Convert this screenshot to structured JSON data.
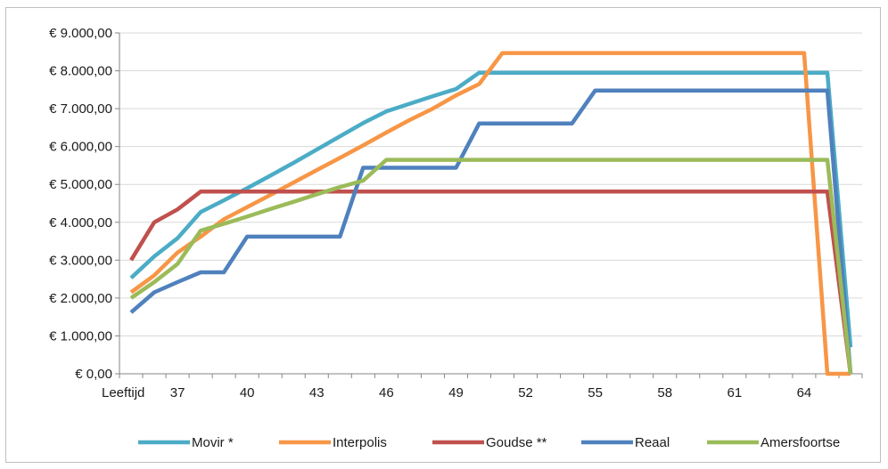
{
  "chart_data": {
    "type": "line",
    "title": "",
    "xlabel": "",
    "ylabel": "",
    "grid": true,
    "legend": "bottom",
    "x": [
      35,
      36,
      37,
      38,
      39,
      40,
      41,
      42,
      43,
      44,
      45,
      46,
      47,
      48,
      49,
      50,
      51,
      52,
      53,
      54,
      55,
      56,
      57,
      58,
      59,
      60,
      61,
      62,
      63,
      64,
      65,
      66
    ],
    "x_tick_labels": [
      "Leeftijd",
      "37",
      "40",
      "43",
      "46",
      "49",
      "52",
      "55",
      "58",
      "61",
      "64"
    ],
    "y_tick_labels": [
      "€ 0,00",
      "€ 1.000,00",
      "€ 2.000,00",
      "€ 3.000,00",
      "€ 4.000,00",
      "€ 5.000,00",
      "€ 6.000,00",
      "€ 7.000,00",
      "€ 8.000,00",
      "€ 9.000,00"
    ],
    "ylim": [
      0,
      9000
    ],
    "series": [
      {
        "name": "Movir *",
        "color": "#4bacc6",
        "values": [
          2530,
          3100,
          3580,
          4270,
          4580,
          4900,
          5230,
          5570,
          5920,
          6270,
          6620,
          6930,
          7130,
          7330,
          7520,
          7950,
          7950,
          7950,
          7950,
          7950,
          7950,
          7950,
          7950,
          7950,
          7950,
          7950,
          7950,
          7950,
          7950,
          7950,
          7950,
          700
        ]
      },
      {
        "name": "Interpolis",
        "color": "#f79646",
        "values": [
          2150,
          2600,
          3200,
          3620,
          4080,
          4400,
          4720,
          5050,
          5380,
          5700,
          6030,
          6370,
          6700,
          7000,
          7350,
          7650,
          8470,
          8470,
          8470,
          8470,
          8470,
          8470,
          8470,
          8470,
          8470,
          8470,
          8470,
          8470,
          8470,
          8470,
          0,
          0
        ]
      },
      {
        "name": "Goudse **",
        "color": "#c0504d",
        "values": [
          3000,
          4000,
          4340,
          4810,
          4810,
          4810,
          4810,
          4810,
          4810,
          4810,
          4810,
          4810,
          4810,
          4810,
          4810,
          4810,
          4810,
          4810,
          4810,
          4810,
          4810,
          4810,
          4810,
          4810,
          4810,
          4810,
          4810,
          4810,
          4810,
          4810,
          4810,
          0
        ]
      },
      {
        "name": "Reaal",
        "color": "#4f81bd",
        "values": [
          1620,
          2150,
          2420,
          2680,
          2680,
          3620,
          3620,
          3620,
          3620,
          3620,
          5440,
          5440,
          5440,
          5440,
          5440,
          6610,
          6610,
          6610,
          6610,
          6610,
          7480,
          7480,
          7480,
          7480,
          7480,
          7480,
          7480,
          7480,
          7480,
          7480,
          7480,
          0
        ]
      },
      {
        "name": "Amersfoortse",
        "color": "#9bbb59",
        "values": [
          2000,
          2420,
          2900,
          3780,
          3960,
          4150,
          4350,
          4540,
          4740,
          4930,
          5100,
          5650,
          5650,
          5650,
          5650,
          5650,
          5650,
          5650,
          5650,
          5650,
          5650,
          5650,
          5650,
          5650,
          5650,
          5650,
          5650,
          5650,
          5650,
          5650,
          5650,
          0
        ]
      }
    ]
  }
}
